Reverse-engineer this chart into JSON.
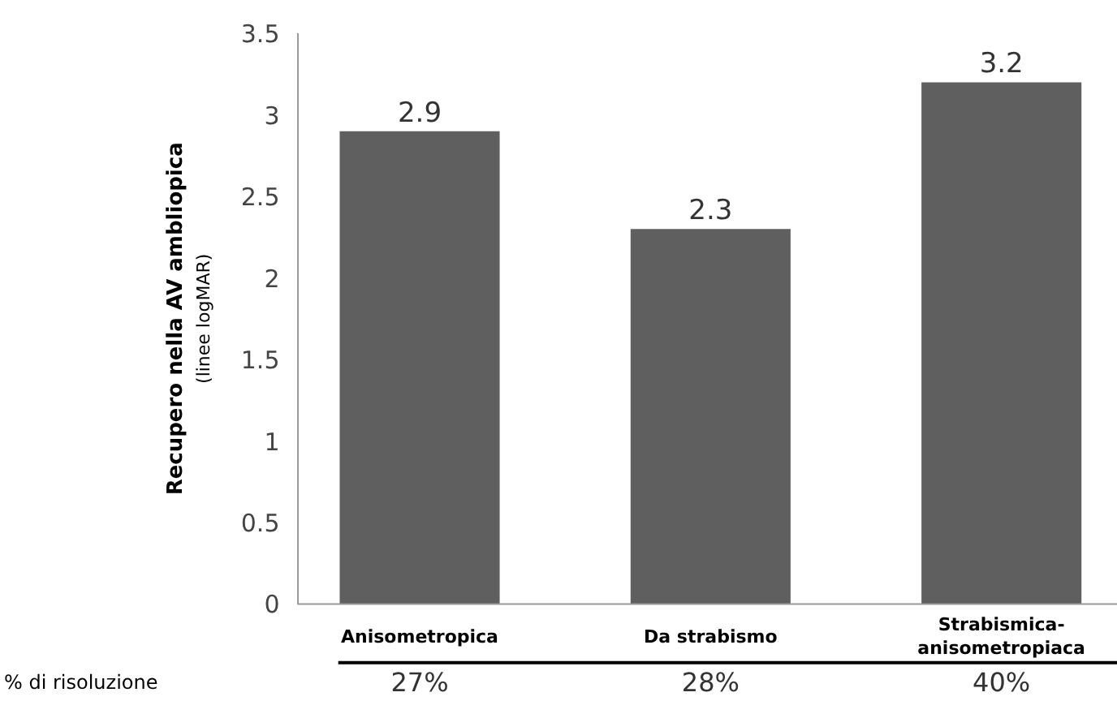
{
  "chart_data": {
    "type": "bar",
    "categories": [
      "Anisometropica",
      "Da strabismo",
      "Strabismica-anisometropiaca"
    ],
    "values": [
      2.9,
      2.3,
      3.2
    ],
    "color": "#5f5f5f",
    "ylim": [
      0,
      3.5
    ],
    "yticks": [
      0,
      0.5,
      1,
      1.5,
      2,
      2.5,
      3,
      3.5
    ],
    "ylabel": "Recupero nella AV ambliopica\n(linee logMAR)",
    "data_labels": true,
    "grid": false,
    "annotations": [
      "% di risoluzione",
      "27%",
      "28%",
      "40%"
    ]
  }
}
